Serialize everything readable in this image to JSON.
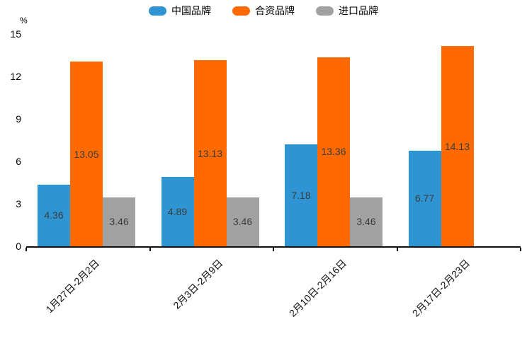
{
  "chart_data": {
    "type": "bar",
    "title": "",
    "unit_label": "%",
    "categories": [
      "1月27日-2月2日",
      "2月3日-2月9日",
      "2月10日-2月16日",
      "2月17日-2月23日"
    ],
    "series": [
      {
        "name": "中国品牌",
        "color": "#2e94d2",
        "values": [
          4.36,
          4.89,
          7.18,
          6.77
        ]
      },
      {
        "name": "合资品牌",
        "color": "#ff6a00",
        "values": [
          13.05,
          13.13,
          13.36,
          14.13
        ]
      },
      {
        "name": "进口品牌",
        "color": "#a1a1a1",
        "values": [
          3.46,
          3.46,
          3.46,
          null
        ]
      }
    ],
    "value_label_format": "2-decimals",
    "value_label_position": "inside-center",
    "y_ticks": [
      0,
      3,
      6,
      9,
      12,
      15
    ],
    "ylim": [
      0,
      15
    ],
    "xlabel": "",
    "ylabel": "%",
    "x_label_rotation_deg": 45,
    "legend_position": "top-center",
    "grid": false,
    "colors": {
      "axis_line": "#111111",
      "axis_text": "#000000",
      "value_label_text": "#3c3c3c",
      "background": "#ffffff"
    }
  }
}
